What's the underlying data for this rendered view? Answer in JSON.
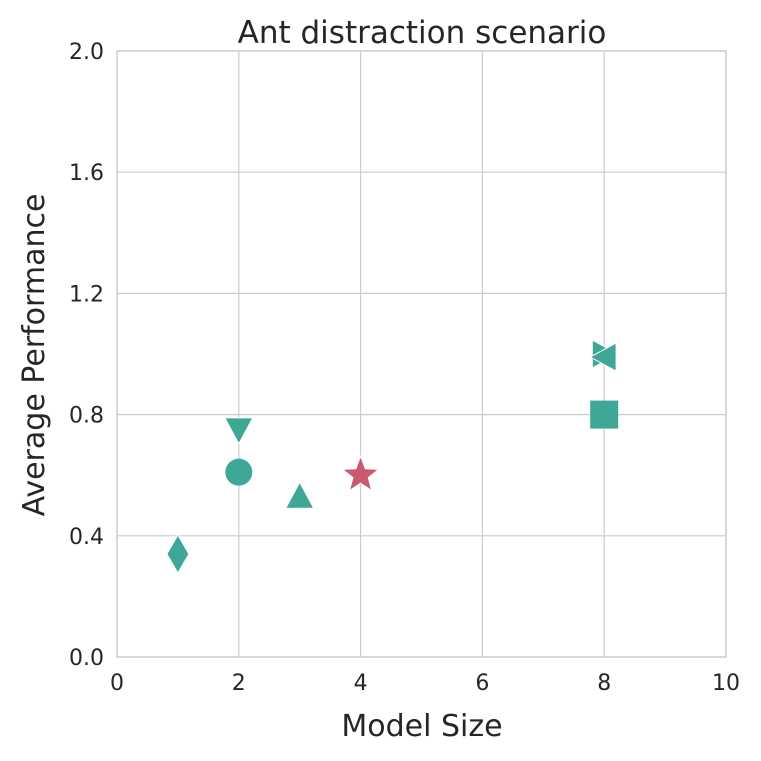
{
  "chart_data": {
    "type": "scatter",
    "title": "Ant distraction scenario",
    "xlabel": "Model Size",
    "ylabel": "Average Performance",
    "xlim": [
      0,
      10
    ],
    "ylim": [
      0.0,
      2.0
    ],
    "x_ticks": [
      0,
      2,
      4,
      6,
      8,
      10
    ],
    "x_tick_labels": [
      "0",
      "2",
      "4",
      "6",
      "8",
      "10"
    ],
    "y_ticks": [
      0.0,
      0.4,
      0.8,
      1.2,
      1.6,
      2.0
    ],
    "y_tick_labels": [
      "0.0",
      "0.4",
      "0.8",
      "1.2",
      "1.6",
      "2.0"
    ],
    "grid": true,
    "colors": {
      "teal": "#3fa796",
      "red": "#c8596f"
    },
    "points": [
      {
        "x": 1,
        "y": 0.34,
        "marker": "diamond",
        "color": "teal"
      },
      {
        "x": 2,
        "y": 0.61,
        "marker": "circle",
        "color": "teal"
      },
      {
        "x": 2,
        "y": 0.75,
        "marker": "triangle-down",
        "color": "teal"
      },
      {
        "x": 3,
        "y": 0.53,
        "marker": "triangle-up",
        "color": "teal"
      },
      {
        "x": 4,
        "y": 0.6,
        "marker": "star",
        "color": "red"
      },
      {
        "x": 8,
        "y": 1.0,
        "marker": "triangle-right",
        "color": "teal"
      },
      {
        "x": 8,
        "y": 0.99,
        "marker": "triangle-left",
        "color": "teal"
      },
      {
        "x": 8,
        "y": 0.8,
        "marker": "square",
        "color": "teal"
      }
    ]
  }
}
